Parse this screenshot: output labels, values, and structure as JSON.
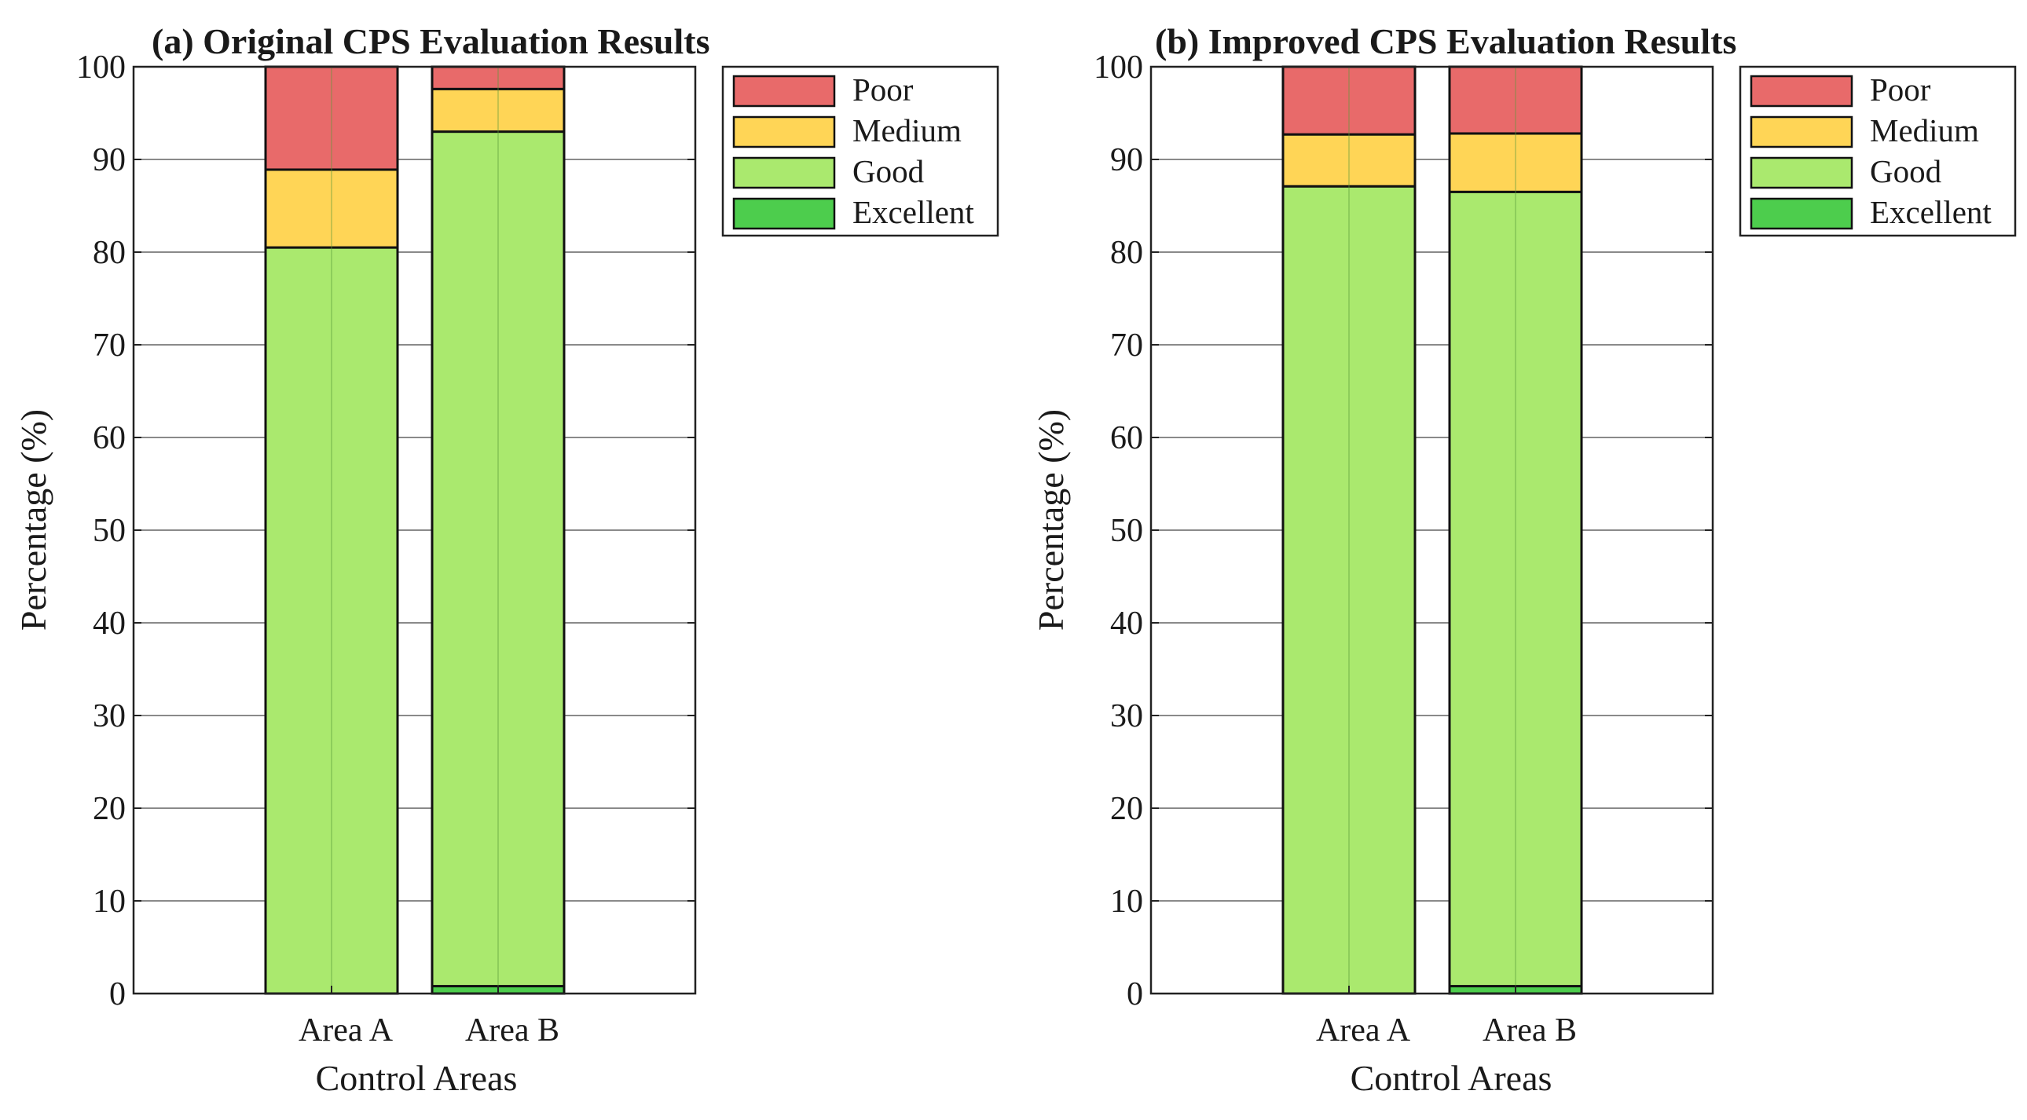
{
  "chart_data": [
    {
      "type": "bar",
      "stacked": true,
      "title": "(a) Original CPS Evaluation Results",
      "xlabel": "Control Areas",
      "ylabel": "Percentage (%)",
      "categories": [
        "Area A",
        "Area B"
      ],
      "ylim": [
        0,
        100
      ],
      "yticks": [
        "0",
        "10",
        "20",
        "30",
        "40",
        "50",
        "60",
        "70",
        "80",
        "90",
        "100"
      ],
      "grid": true,
      "legend_position": "top-right-outside",
      "series": [
        {
          "name": "Excellent",
          "values": [
            0.0,
            0.8
          ]
        },
        {
          "name": "Good",
          "values": [
            80.5,
            92.2
          ]
        },
        {
          "name": "Medium",
          "values": [
            8.4,
            4.6
          ]
        },
        {
          "name": "Poor",
          "values": [
            11.1,
            2.4
          ]
        }
      ]
    },
    {
      "type": "bar",
      "stacked": true,
      "title": "(b) Improved CPS Evaluation Results",
      "xlabel": "Control Areas",
      "ylabel": "Percentage (%)",
      "categories": [
        "Area A",
        "Area B"
      ],
      "ylim": [
        0,
        100
      ],
      "yticks": [
        "0",
        "10",
        "20",
        "30",
        "40",
        "50",
        "60",
        "70",
        "80",
        "90",
        "100"
      ],
      "grid": true,
      "legend_position": "top-right-outside",
      "series": [
        {
          "name": "Excellent",
          "values": [
            0.0,
            0.8
          ]
        },
        {
          "name": "Good",
          "values": [
            87.1,
            85.7
          ]
        },
        {
          "name": "Medium",
          "values": [
            5.6,
            6.3
          ]
        },
        {
          "name": "Poor",
          "values": [
            7.3,
            7.2
          ]
        }
      ]
    }
  ],
  "colors": {
    "Poor": "#e86a6a",
    "Medium": "#ffd556",
    "Good": "#aae96e",
    "Excellent": "#4dcd4d"
  },
  "legend_order": [
    "Poor",
    "Medium",
    "Good",
    "Excellent"
  ]
}
